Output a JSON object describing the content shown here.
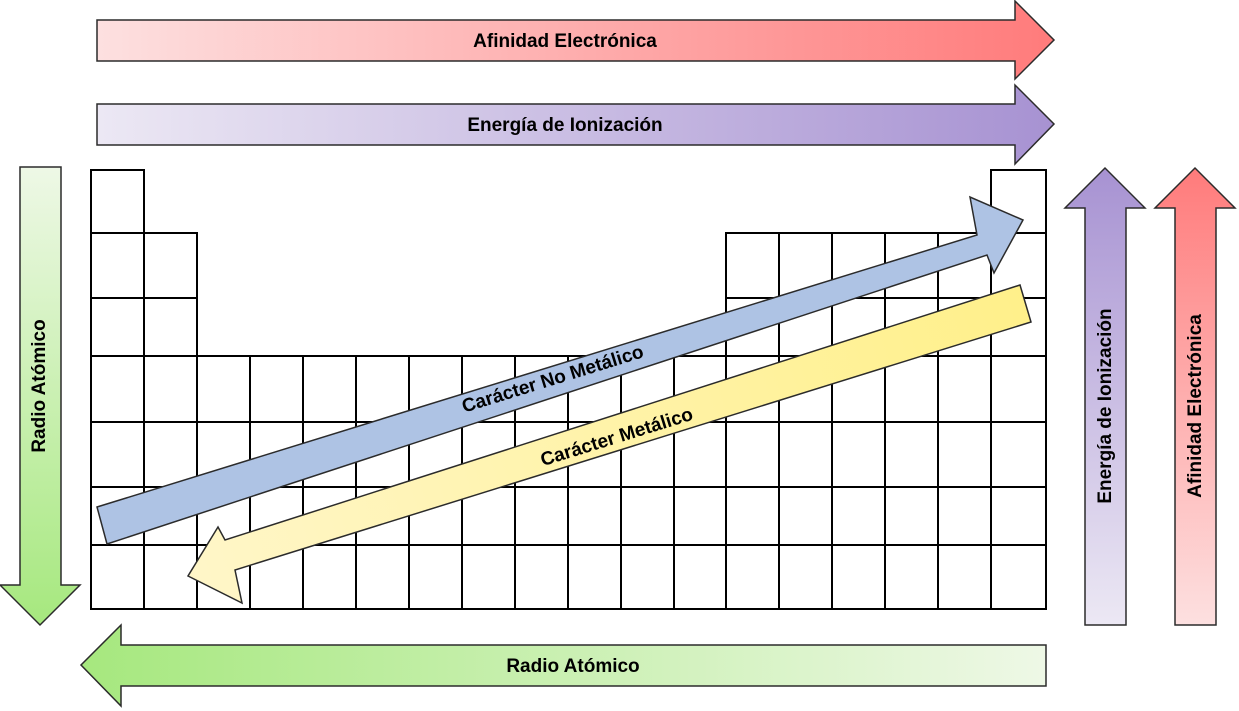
{
  "periodic_grid": {
    "cols": 18,
    "rows": 7,
    "row_present": [
      [
        true,
        false,
        false,
        false,
        false,
        false,
        false,
        false,
        false,
        false,
        false,
        false,
        false,
        false,
        false,
        false,
        false,
        true
      ],
      [
        true,
        true,
        false,
        false,
        false,
        false,
        false,
        false,
        false,
        false,
        false,
        false,
        true,
        true,
        true,
        true,
        true,
        true
      ],
      [
        true,
        true,
        false,
        false,
        false,
        false,
        false,
        false,
        false,
        false,
        false,
        false,
        true,
        true,
        true,
        true,
        true,
        true
      ],
      [
        true,
        true,
        true,
        true,
        true,
        true,
        true,
        true,
        true,
        true,
        true,
        true,
        true,
        true,
        true,
        true,
        true,
        true
      ],
      [
        true,
        true,
        true,
        true,
        true,
        true,
        true,
        true,
        true,
        true,
        true,
        true,
        true,
        true,
        true,
        true,
        true,
        true
      ],
      [
        true,
        true,
        true,
        true,
        true,
        true,
        true,
        true,
        true,
        true,
        true,
        true,
        true,
        true,
        true,
        true,
        true,
        true
      ],
      [
        true,
        true,
        true,
        true,
        true,
        true,
        true,
        true,
        true,
        true,
        true,
        true,
        true,
        true,
        true,
        true,
        true,
        true
      ]
    ]
  },
  "arrows": {
    "affinity_top": {
      "label": "Afinidad Electrónica",
      "color_start": "#fde0e0",
      "color_end": "#ff7b7b"
    },
    "ionization_top": {
      "label": "Energía de Ionización",
      "color_start": "#ece8f4",
      "color_end": "#a792d2"
    },
    "radius_left": {
      "label": "Radio Atómico",
      "color_start": "#eef8e6",
      "color_end": "#a6e87e"
    },
    "radius_bottom": {
      "label": "Radio Atómico",
      "color_start": "#eef8e6",
      "color_end": "#a6e87e"
    },
    "ionization_right": {
      "label": "Energía de Ionización",
      "color_start": "#ece8f4",
      "color_end": "#a792d2"
    },
    "affinity_right": {
      "label": "Afinidad Electrónica",
      "color_start": "#fde0e0",
      "color_end": "#ff7b7b"
    },
    "nonmetallic": {
      "label": "Carácter No Metálico",
      "color": "#aec3e4"
    },
    "metallic": {
      "label": "Carácter Metálico",
      "color_start": "#fff6c8",
      "color_end": "#fff08a"
    }
  }
}
